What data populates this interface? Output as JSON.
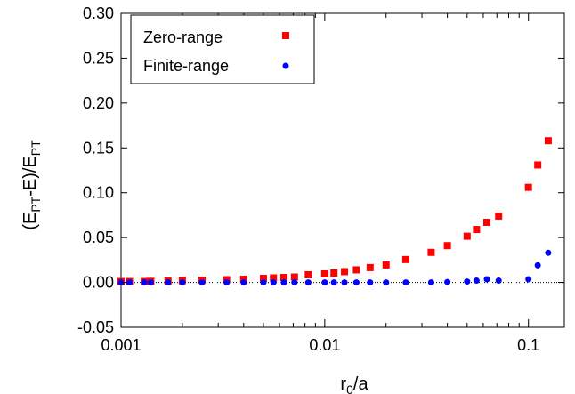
{
  "chart_data": {
    "type": "scatter",
    "title": "",
    "xlabel": {
      "base": "r",
      "sub": "0",
      "rest": "/a"
    },
    "ylabel": {
      "parts": [
        {
          "t": "(E",
          "sub": false
        },
        {
          "t": "PT",
          "sub": true
        },
        {
          "t": "-E)/E",
          "sub": false
        },
        {
          "t": "PT",
          "sub": true
        }
      ]
    },
    "x_scale": "log",
    "xlim": [
      0.001,
      0.15
    ],
    "ylim": [
      -0.05,
      0.3
    ],
    "x_ticks": [
      {
        "value": 0.001,
        "label": "0.001"
      },
      {
        "value": 0.01,
        "label": "0.01"
      },
      {
        "value": 0.1,
        "label": "0.1"
      }
    ],
    "y_ticks": [
      {
        "value": -0.05,
        "label": "-0.05"
      },
      {
        "value": 0.0,
        "label": "0.00"
      },
      {
        "value": 0.05,
        "label": "0.05"
      },
      {
        "value": 0.1,
        "label": "0.10"
      },
      {
        "value": 0.15,
        "label": "0.15"
      },
      {
        "value": 0.2,
        "label": "0.20"
      },
      {
        "value": 0.25,
        "label": "0.25"
      },
      {
        "value": 0.3,
        "label": "0.30"
      }
    ],
    "grid": false,
    "zero_line": true,
    "legend_position": "top-left",
    "series": [
      {
        "name": "Zero-range",
        "marker": "square",
        "color": "#ff0000",
        "points": [
          [
            0.001,
            0.001
          ],
          [
            0.0011,
            0.001
          ],
          [
            0.0013,
            0.001
          ],
          [
            0.0014,
            0.0012
          ],
          [
            0.0017,
            0.0015
          ],
          [
            0.002,
            0.002
          ],
          [
            0.0025,
            0.0025
          ],
          [
            0.0033,
            0.003
          ],
          [
            0.004,
            0.0035
          ],
          [
            0.005,
            0.0045
          ],
          [
            0.0056,
            0.005
          ],
          [
            0.0063,
            0.0055
          ],
          [
            0.0071,
            0.006
          ],
          [
            0.0083,
            0.0085
          ],
          [
            0.01,
            0.0095
          ],
          [
            0.0111,
            0.0105
          ],
          [
            0.0125,
            0.012
          ],
          [
            0.0143,
            0.014
          ],
          [
            0.0167,
            0.0165
          ],
          [
            0.02,
            0.0195
          ],
          [
            0.025,
            0.0255
          ],
          [
            0.0333,
            0.0335
          ],
          [
            0.04,
            0.041
          ],
          [
            0.05,
            0.0515
          ],
          [
            0.0556,
            0.059
          ],
          [
            0.0625,
            0.067
          ],
          [
            0.0714,
            0.074
          ],
          [
            0.1,
            0.106
          ],
          [
            0.1111,
            0.131
          ],
          [
            0.125,
            0.158
          ]
        ]
      },
      {
        "name": "Finite-range",
        "marker": "circle",
        "color": "#0000ff",
        "points": [
          [
            0.001,
            0.0
          ],
          [
            0.0011,
            0.0
          ],
          [
            0.0013,
            0.0
          ],
          [
            0.0014,
            0.0
          ],
          [
            0.0017,
            0.0
          ],
          [
            0.002,
            0.0
          ],
          [
            0.0025,
            0.0
          ],
          [
            0.0033,
            0.0
          ],
          [
            0.004,
            0.0
          ],
          [
            0.005,
            0.0
          ],
          [
            0.0056,
            0.0
          ],
          [
            0.0063,
            0.0
          ],
          [
            0.0071,
            0.0
          ],
          [
            0.0083,
            0.0
          ],
          [
            0.01,
            0.0
          ],
          [
            0.0111,
            0.0
          ],
          [
            0.0125,
            0.0
          ],
          [
            0.0143,
            0.0
          ],
          [
            0.0167,
            0.0
          ],
          [
            0.02,
            0.0
          ],
          [
            0.025,
            0.0
          ],
          [
            0.0333,
            0.0
          ],
          [
            0.04,
            0.0005
          ],
          [
            0.05,
            0.001
          ],
          [
            0.0556,
            0.002
          ],
          [
            0.0625,
            0.0035
          ],
          [
            0.0714,
            0.002
          ],
          [
            0.1,
            0.0035
          ],
          [
            0.1111,
            0.019
          ],
          [
            0.125,
            0.033
          ]
        ]
      }
    ]
  }
}
